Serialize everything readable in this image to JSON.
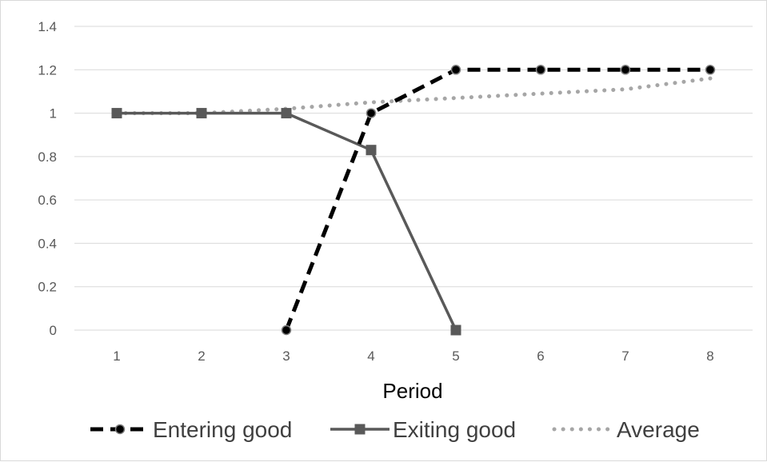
{
  "chart_data": {
    "type": "line",
    "title": "",
    "xlabel": "Period",
    "ylabel": "",
    "x": [
      1,
      2,
      3,
      4,
      5,
      6,
      7,
      8
    ],
    "ylim": [
      0,
      1.4
    ],
    "yticks": [
      "0",
      "0.2",
      "0.4",
      "0.6",
      "0.8",
      "1",
      "1.2",
      "1.4"
    ],
    "xticks": [
      "1",
      "2",
      "3",
      "4",
      "5",
      "6",
      "7",
      "8"
    ],
    "grid": true,
    "legend_position": "bottom",
    "series": [
      {
        "name": "Entering good",
        "style": "dashed",
        "marker": "circle",
        "color": "#000000",
        "points": [
          [
            3,
            0
          ],
          [
            4,
            1
          ],
          [
            5,
            1.2
          ],
          [
            6,
            1.2
          ],
          [
            7,
            1.2
          ],
          [
            8,
            1.2
          ]
        ]
      },
      {
        "name": "Exiting good",
        "style": "solid",
        "marker": "square",
        "color": "#595959",
        "points": [
          [
            1,
            1
          ],
          [
            2,
            1
          ],
          [
            3,
            1
          ],
          [
            4,
            0.83
          ],
          [
            5,
            0
          ]
        ]
      },
      {
        "name": "Average",
        "style": "dotted",
        "marker": "none",
        "color": "#a6a6a6",
        "points": [
          [
            1,
            1
          ],
          [
            2,
            1
          ],
          [
            3,
            1.02
          ],
          [
            4,
            1.05
          ],
          [
            5,
            1.07
          ],
          [
            6,
            1.09
          ],
          [
            7,
            1.11
          ],
          [
            8,
            1.16
          ]
        ]
      }
    ]
  }
}
